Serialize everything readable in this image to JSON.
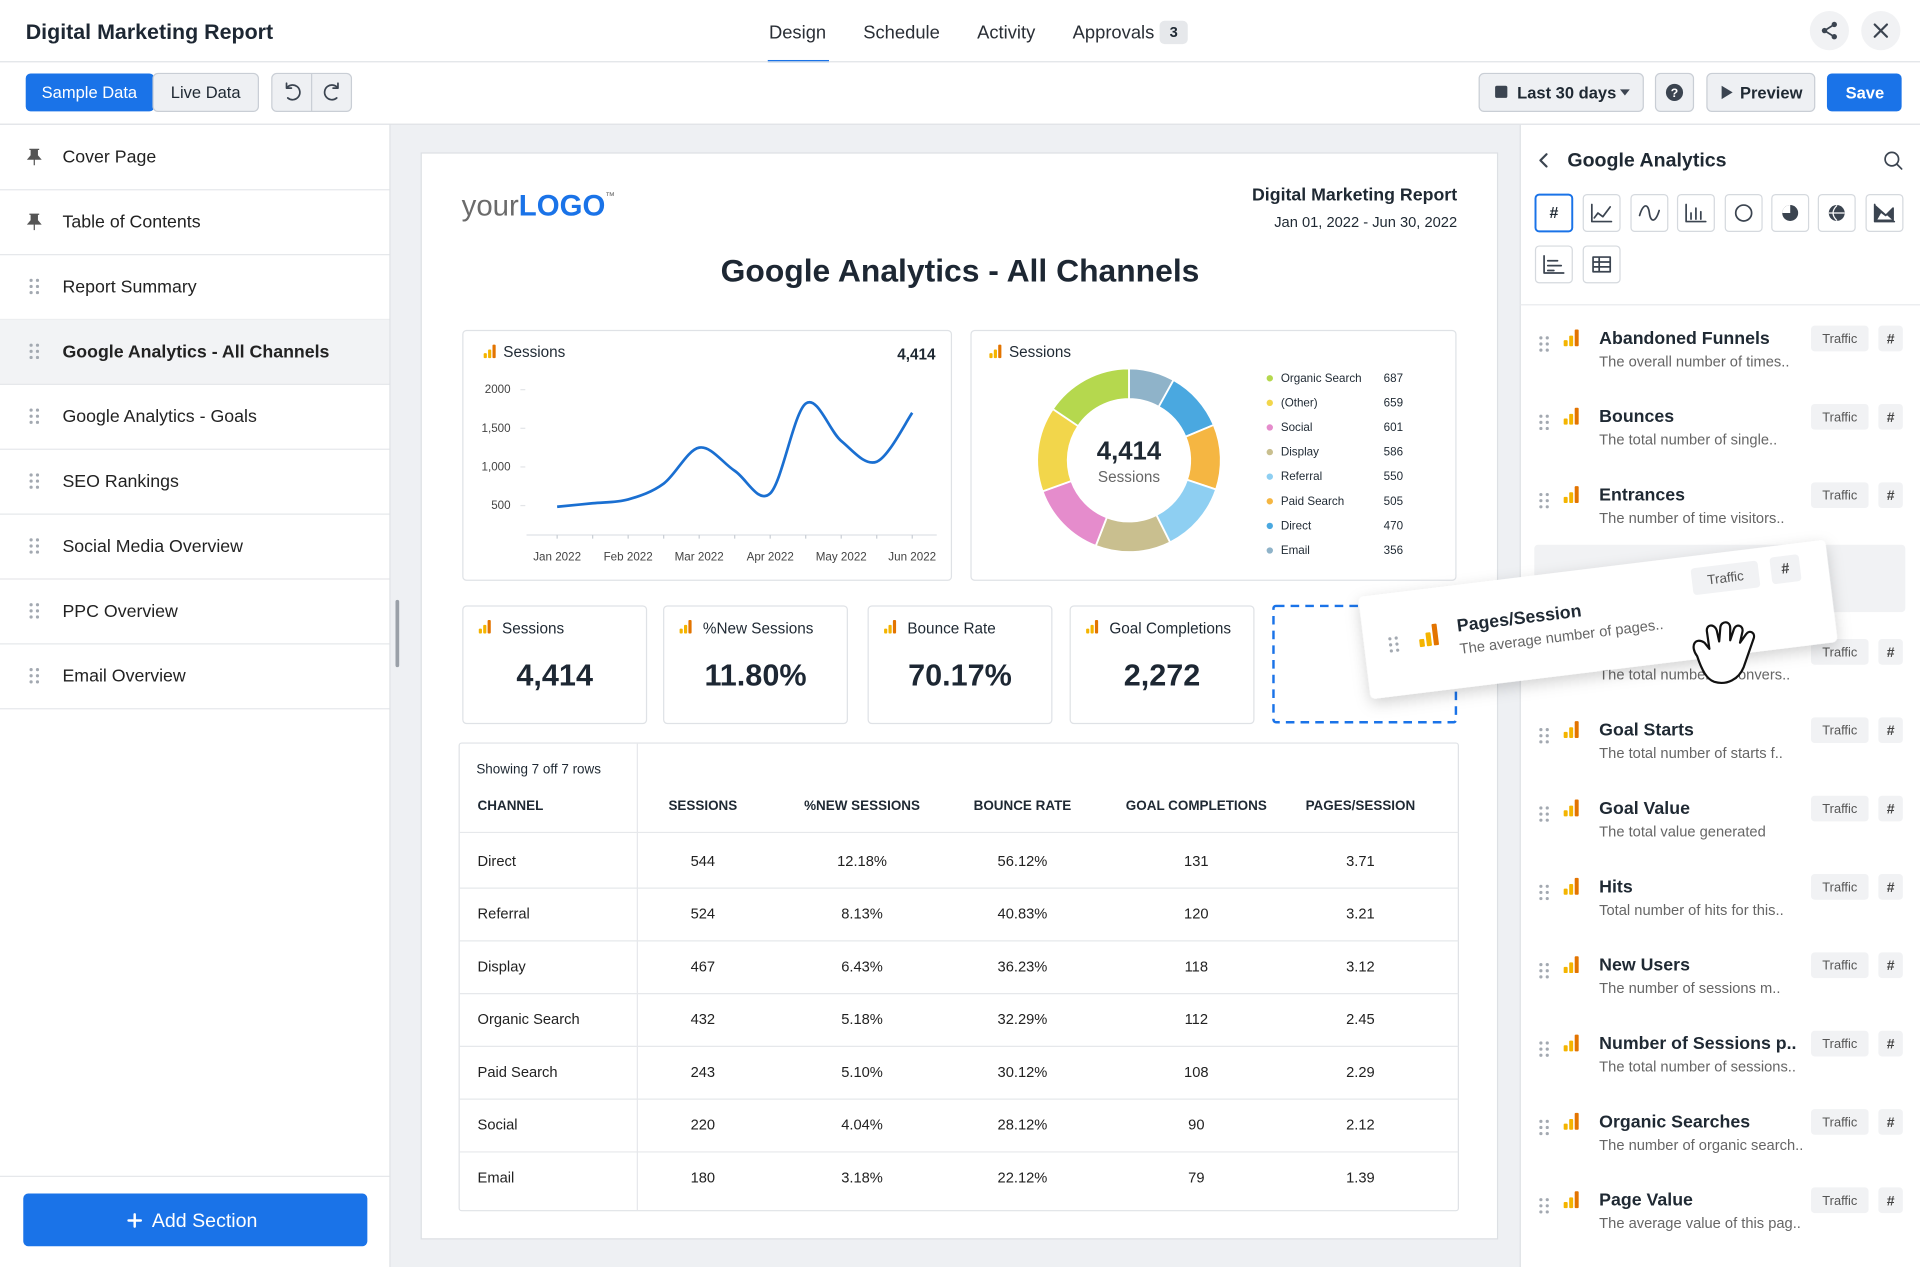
{
  "header": {
    "title": "Digital Marketing Report",
    "tabs": [
      "Design",
      "Schedule",
      "Activity",
      "Approvals"
    ],
    "approvals_count": 3
  },
  "toolbar": {
    "sample_data": "Sample Data",
    "live_data": "Live Data",
    "date_range": "Last 30 days",
    "help": "?",
    "preview": "Preview",
    "save": "Save"
  },
  "sidebar": {
    "sections": [
      {
        "label": "Cover Page",
        "pinned": true
      },
      {
        "label": "Table of Contents",
        "pinned": true
      },
      {
        "label": "Report Summary",
        "pinned": false
      },
      {
        "label": "Google Analytics - All Channels",
        "pinned": false
      },
      {
        "label": "Google Analytics - Goals",
        "pinned": false
      },
      {
        "label": "SEO Rankings",
        "pinned": false
      },
      {
        "label": "Social Media Overview",
        "pinned": false
      },
      {
        "label": "PPC Overview",
        "pinned": false
      },
      {
        "label": "Email Overview",
        "pinned": false
      }
    ],
    "active_section": 3,
    "add_section": "Add Section"
  },
  "report": {
    "logo": {
      "light": "your",
      "bold": "LOGO",
      "mark": "™"
    },
    "title": "Digital Marketing Report",
    "dates": "Jan 01, 2022 - Jun 30, 2022",
    "page_title": "Google Analytics - All Channels",
    "sessions_chart": {
      "type": "line",
      "title": "Sessions",
      "total": "4,414",
      "x": [
        "Jan 2022",
        null,
        "Feb 2022",
        null,
        "Mar 2022",
        null,
        "Apr 2022",
        null,
        "May 2022",
        null,
        "Jun 2022"
      ],
      "values": [
        485,
        530,
        580,
        784,
        1250,
        950,
        658,
        1820,
        1337,
        1068,
        1700
      ],
      "color": "#1a6fd1",
      "ylim": [
        120,
        2100
      ],
      "yticks": [
        500,
        {
          "value": 1000,
          "label": "1,000"
        },
        {
          "value": 1500,
          "label": "1,500"
        },
        2000
      ]
    },
    "donut": {
      "type": "pie",
      "title": "Sessions",
      "center_value": "4,414",
      "center_label": "Sessions",
      "categories": [
        "Organic Search",
        "(Other)",
        "Social",
        "Display",
        "Referral",
        "Paid Search",
        "Direct",
        "Email"
      ],
      "values": [
        687,
        659,
        601,
        586,
        550,
        505,
        470,
        356
      ],
      "colors": [
        "#b5d84e",
        "#f2d64b",
        "#e58ccc",
        "#c9bf8f",
        "#8ecff2",
        "#f5b642",
        "#4aa8e0",
        "#8fb3c9"
      ]
    },
    "kpis": [
      {
        "label": "Sessions",
        "value": "4,414"
      },
      {
        "label": "%New Sessions",
        "value": "11.80%"
      },
      {
        "label": "Bounce Rate",
        "value": "70.17%"
      },
      {
        "label": "Goal Completions",
        "value": "2,272"
      }
    ],
    "table": {
      "caption": "Showing 7 off 7 rows",
      "columns": [
        "CHANNEL",
        "SESSIONS",
        "%NEW SESSIONS",
        "BOUNCE RATE",
        "GOAL COMPLETIONS",
        "PAGES/SESSION"
      ],
      "rows": [
        [
          "Direct",
          "544",
          "12.18%",
          "56.12%",
          "131",
          "3.71"
        ],
        [
          "Referral",
          "524",
          "8.13%",
          "40.83%",
          "120",
          "3.21"
        ],
        [
          "Display",
          "467",
          "6.43%",
          "36.23%",
          "118",
          "3.12"
        ],
        [
          "Organic Search",
          "432",
          "5.18%",
          "32.29%",
          "112",
          "2.45"
        ],
        [
          "Paid Search",
          "243",
          "5.10%",
          "30.12%",
          "108",
          "2.29"
        ],
        [
          "Social",
          "220",
          "4.04%",
          "28.12%",
          "90",
          "2.12"
        ],
        [
          "Email",
          "180",
          "3.18%",
          "22.12%",
          "79",
          "1.39"
        ]
      ]
    }
  },
  "panel": {
    "title": "Google Analytics",
    "type_symbol": "#",
    "tag": "Traffic",
    "drop_slot": 3,
    "metrics": [
      {
        "name": "Abandoned Funnels",
        "desc": "The overall number of times.."
      },
      {
        "name": "Bounces",
        "desc": "The total number of single.."
      },
      {
        "name": "Entrances",
        "desc": "The number of time visitors.."
      },
      {
        "desc": "The total number of convers.."
      },
      {
        "name": "Goal Starts",
        "desc": "The total number of starts f.."
      },
      {
        "name": "Goal Value",
        "desc": "The total value generated"
      },
      {
        "name": "Hits",
        "desc": "Total number of hits for this.."
      },
      {
        "name": "New Users",
        "desc": "The number of sessions m.."
      },
      {
        "name": "Number of Sessions p..",
        "desc": "The total number of sessions.."
      },
      {
        "name": "Organic Searches",
        "desc": "The number of organic search.."
      },
      {
        "name": "Page Value",
        "desc": "The average value of this pag.."
      }
    ],
    "dragging": {
      "name": "Pages/Session",
      "desc": "The average number of pages.."
    }
  }
}
